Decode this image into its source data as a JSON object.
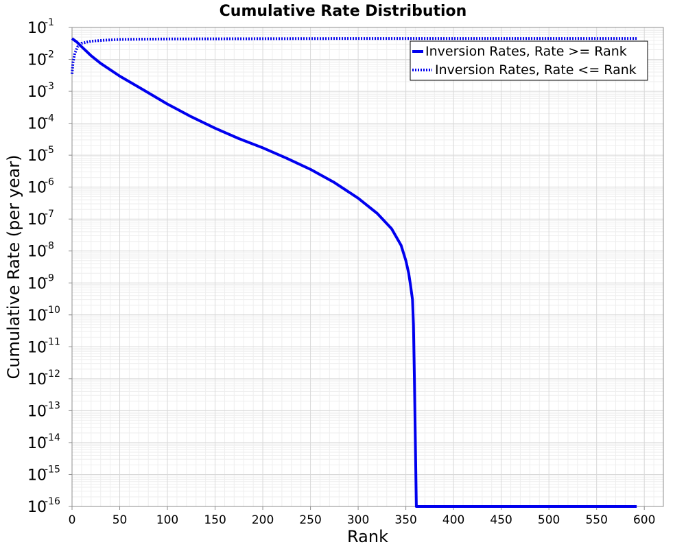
{
  "chart_data": {
    "type": "line",
    "title": "Cumulative Rate Distribution",
    "xlabel": "Rank",
    "ylabel": "Cumulative Rate (per year)",
    "xlim": [
      0,
      620
    ],
    "ylim": [
      1e-16,
      0.1
    ],
    "yscale": "log",
    "grid": true,
    "legend_position": "top-right",
    "x_ticks": [
      "0",
      "50",
      "100",
      "150",
      "200",
      "250",
      "300",
      "350",
      "400",
      "450",
      "500",
      "550",
      "600"
    ],
    "y_ticks": [
      {
        "base": "10",
        "exp": "-1"
      },
      {
        "base": "10",
        "exp": "-2"
      },
      {
        "base": "10",
        "exp": "-3"
      },
      {
        "base": "10",
        "exp": "-4"
      },
      {
        "base": "10",
        "exp": "-5"
      },
      {
        "base": "10",
        "exp": "-6"
      },
      {
        "base": "10",
        "exp": "-7"
      },
      {
        "base": "10",
        "exp": "-8"
      },
      {
        "base": "10",
        "exp": "-9"
      },
      {
        "base": "10",
        "exp": "-10"
      },
      {
        "base": "10",
        "exp": "-11"
      },
      {
        "base": "10",
        "exp": "-12"
      },
      {
        "base": "10",
        "exp": "-13"
      },
      {
        "base": "10",
        "exp": "-14"
      },
      {
        "base": "10",
        "exp": "-15"
      },
      {
        "base": "10",
        "exp": "-16"
      }
    ],
    "series": [
      {
        "name": "Inversion Rates, Rate >= Rank",
        "color": "#0000ee",
        "style": "solid",
        "x": [
          0,
          5,
          10,
          20,
          30,
          50,
          75,
          100,
          125,
          150,
          175,
          200,
          225,
          250,
          275,
          300,
          320,
          335,
          345,
          350,
          353,
          355,
          357,
          358,
          359,
          360,
          361,
          362,
          400,
          500,
          592
        ],
        "y": [
          0.045,
          0.035,
          0.025,
          0.013,
          0.0075,
          0.003,
          0.0011,
          0.0004,
          0.00016,
          7e-05,
          3.3e-05,
          1.7e-05,
          8e-06,
          3.6e-06,
          1.4e-06,
          4.5e-07,
          1.5e-07,
          5e-08,
          1.5e-08,
          5e-09,
          2e-09,
          8e-10,
          3e-10,
          5e-11,
          1e-12,
          1e-14,
          1e-16,
          1e-16,
          1e-16,
          1e-16,
          1e-16
        ]
      },
      {
        "name": "Inversion Rates, Rate <= Rank",
        "color": "#0000ee",
        "style": "dotted",
        "x": [
          0,
          1,
          3,
          6,
          10,
          20,
          35,
          50,
          75,
          100,
          200,
          300,
          400,
          500,
          592
        ],
        "y": [
          0.0035,
          0.008,
          0.016,
          0.025,
          0.032,
          0.037,
          0.04,
          0.042,
          0.043,
          0.0435,
          0.0445,
          0.045,
          0.045,
          0.045,
          0.045
        ]
      }
    ]
  }
}
